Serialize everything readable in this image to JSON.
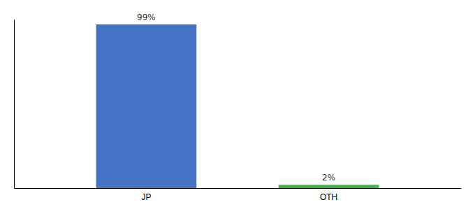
{
  "chart_data": {
    "type": "bar",
    "categories": [
      "JP",
      "OTH"
    ],
    "values": [
      99,
      2
    ],
    "value_labels": [
      "99%",
      "2%"
    ],
    "colors": [
      "#4472c4",
      "#3cb54a"
    ],
    "ylim": [
      0,
      102
    ],
    "data_labels": true,
    "tick_labels": "x",
    "grid": false
  }
}
